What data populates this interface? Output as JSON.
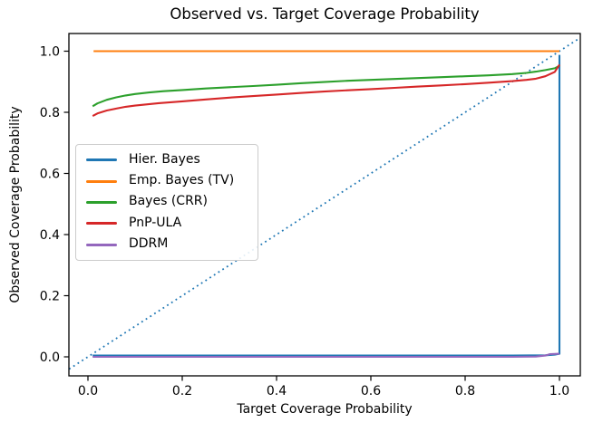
{
  "chart_data": {
    "type": "line",
    "title": "Observed vs. Target Coverage Probability",
    "xlabel": "Target Coverage Probability",
    "ylabel": "Observed Coverage Probability",
    "xlim": [
      -0.04,
      1.044
    ],
    "ylim": [
      -0.062,
      1.058
    ],
    "xticks": [
      0.0,
      0.2,
      0.4,
      0.6,
      0.8,
      1.0
    ],
    "yticks": [
      0.0,
      0.2,
      0.4,
      0.6,
      0.8,
      1.0
    ],
    "x_tick_labels": [
      "0.0",
      "0.2",
      "0.4",
      "0.6",
      "0.8",
      "1.0"
    ],
    "y_tick_labels": [
      "0.0",
      "0.2",
      "0.4",
      "0.6",
      "0.8",
      "1.0"
    ],
    "grid": false,
    "legend_position": "center-left-inside",
    "legend_border_color": "#cccccc",
    "reference_line": {
      "name": "identity y = x",
      "style": "dotted",
      "color": "#1f77b4",
      "t_start": -0.04,
      "t_end": 1.044
    },
    "series": [
      {
        "name": "Hier. Bayes",
        "color": "#1f77b4",
        "x": [
          0.01,
          0.5,
          0.9,
          0.97,
          0.99,
          1.0,
          1.0
        ],
        "y": [
          0.004,
          0.004,
          0.004,
          0.005,
          0.007,
          0.01,
          0.988
        ]
      },
      {
        "name": "Emp. Bayes (TV)",
        "color": "#ff7f0e",
        "x": [
          0.012,
          0.5,
          1.0
        ],
        "y": [
          1.0,
          1.0,
          1.0
        ]
      },
      {
        "name": "Bayes (CRR)",
        "color": "#2ca02c",
        "x": [
          0.01,
          0.02,
          0.04,
          0.06,
          0.08,
          0.1,
          0.13,
          0.16,
          0.2,
          0.25,
          0.3,
          0.35,
          0.4,
          0.45,
          0.5,
          0.55,
          0.6,
          0.65,
          0.7,
          0.75,
          0.8,
          0.85,
          0.9,
          0.93,
          0.95,
          0.97,
          0.99,
          1.0
        ],
        "y": [
          0.82,
          0.829,
          0.841,
          0.849,
          0.855,
          0.86,
          0.865,
          0.869,
          0.873,
          0.878,
          0.882,
          0.886,
          0.89,
          0.895,
          0.899,
          0.903,
          0.906,
          0.909,
          0.912,
          0.915,
          0.918,
          0.921,
          0.925,
          0.929,
          0.933,
          0.938,
          0.944,
          0.952
        ]
      },
      {
        "name": "PnP-ULA",
        "color": "#d62728",
        "x": [
          0.01,
          0.02,
          0.04,
          0.06,
          0.08,
          0.1,
          0.15,
          0.2,
          0.25,
          0.3,
          0.35,
          0.4,
          0.45,
          0.5,
          0.55,
          0.6,
          0.65,
          0.7,
          0.75,
          0.8,
          0.85,
          0.9,
          0.93,
          0.95,
          0.97,
          0.99,
          1.0
        ],
        "y": [
          0.788,
          0.796,
          0.806,
          0.812,
          0.818,
          0.822,
          0.83,
          0.836,
          0.842,
          0.848,
          0.853,
          0.858,
          0.863,
          0.868,
          0.872,
          0.876,
          0.88,
          0.884,
          0.888,
          0.892,
          0.897,
          0.902,
          0.906,
          0.91,
          0.918,
          0.932,
          0.956
        ]
      },
      {
        "name": "DDRM",
        "color": "#9467bd",
        "x": [
          0.01,
          0.5,
          0.9,
          0.95,
          0.97,
          0.98,
          1.0
        ],
        "y": [
          0.0,
          0.0,
          0.0,
          0.001,
          0.004,
          0.009,
          0.01
        ]
      }
    ]
  }
}
